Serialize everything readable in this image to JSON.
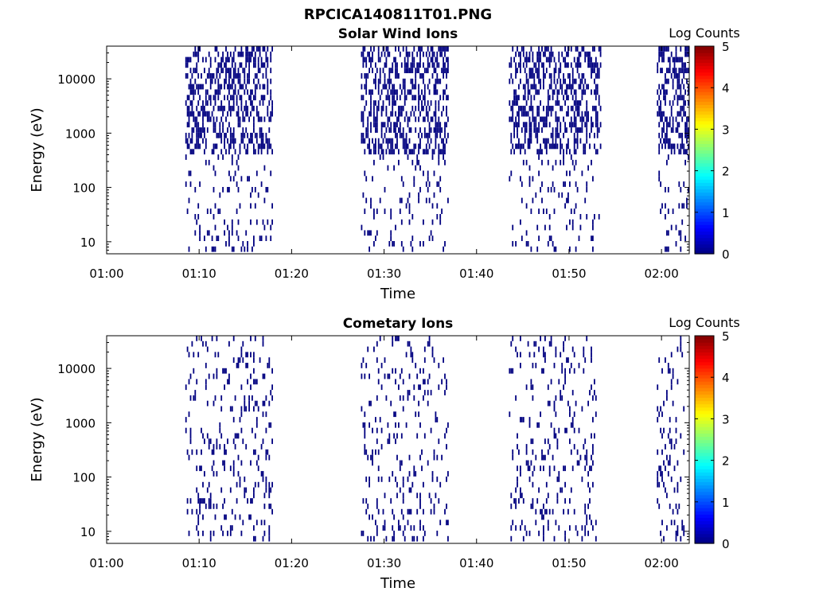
{
  "figure_title": "RPCICA140811T01.PNG",
  "chart_data": [
    {
      "type": "heatmap",
      "title": "Solar Wind Ions",
      "xlabel": "Time",
      "ylabel": "Energy (eV)",
      "y_scale": "log",
      "ylim": [
        6,
        40000
      ],
      "xlim": [
        "01:00",
        "02:03"
      ],
      "x_ticks": [
        "01:00",
        "01:10",
        "01:20",
        "01:30",
        "01:40",
        "01:50",
        "02:00"
      ],
      "y_ticks": [
        "10",
        "100",
        "1000",
        "10000"
      ],
      "colorbar": {
        "label": "Log Counts",
        "ticks": [
          "0",
          "1",
          "2",
          "3",
          "4",
          "5"
        ],
        "range": [
          0,
          5
        ],
        "colormap": "jet"
      },
      "value_log_counts": 0,
      "bursts": [
        {
          "start": "01:08:30",
          "end": "01:18:00"
        },
        {
          "start": "01:27:30",
          "end": "01:37:00"
        },
        {
          "start": "01:43:30",
          "end": "01:53:30"
        },
        {
          "start": "01:59:30",
          "end": "02:03:00"
        }
      ]
    },
    {
      "type": "heatmap",
      "title": "Cometary Ions",
      "xlabel": "Time",
      "ylabel": "Energy (eV)",
      "y_scale": "log",
      "ylim": [
        6,
        40000
      ],
      "xlim": [
        "01:00",
        "02:03"
      ],
      "x_ticks": [
        "01:00",
        "01:10",
        "01:20",
        "01:30",
        "01:40",
        "01:50",
        "02:00"
      ],
      "y_ticks": [
        "10",
        "100",
        "1000",
        "10000"
      ],
      "colorbar": {
        "label": "Log Counts",
        "ticks": [
          "0",
          "1",
          "2",
          "3",
          "4",
          "5"
        ],
        "range": [
          0,
          5
        ],
        "colormap": "jet"
      },
      "value_log_counts": 0,
      "bursts": [
        {
          "start": "01:08:30",
          "end": "01:18:00"
        },
        {
          "start": "01:27:30",
          "end": "01:37:00"
        },
        {
          "start": "01:43:30",
          "end": "01:53:00"
        },
        {
          "start": "01:59:30",
          "end": "02:02:30"
        }
      ]
    }
  ]
}
